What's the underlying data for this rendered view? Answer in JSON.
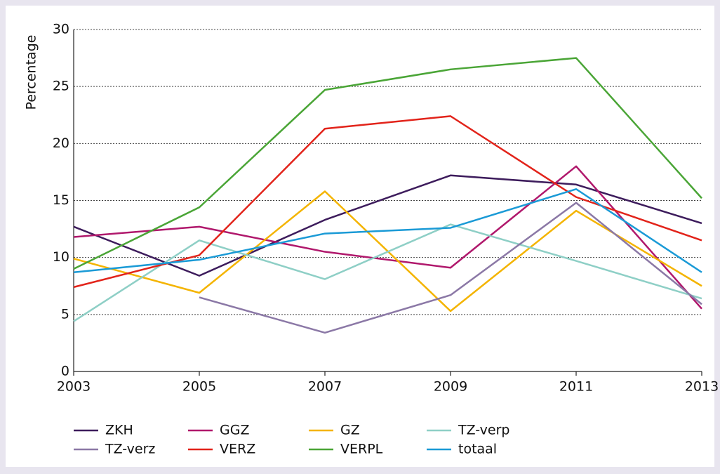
{
  "chart_data": {
    "type": "line",
    "y_label": "Percentage",
    "x": [
      2003,
      2005,
      2007,
      2009,
      2011,
      2013
    ],
    "xlim": [
      2003,
      2013
    ],
    "xticks": [
      2003,
      2005,
      2007,
      2009,
      2011,
      2013
    ],
    "ylim": [
      0,
      30
    ],
    "yticks": [
      0,
      5,
      10,
      15,
      20,
      25,
      30
    ],
    "grid": true,
    "legend": "bottom",
    "series": [
      {
        "name": "ZKH",
        "color": "#3d1c5c",
        "values": [
          12.7,
          8.4,
          13.3,
          17.2,
          16.4,
          13.0
        ]
      },
      {
        "name": "GGZ",
        "color": "#b0186c",
        "values": [
          11.8,
          12.7,
          10.5,
          9.1,
          18.0,
          5.5
        ]
      },
      {
        "name": "GZ",
        "color": "#f4b400",
        "values": [
          9.9,
          6.9,
          15.8,
          5.3,
          14.1,
          7.5
        ]
      },
      {
        "name": "TZ-verp",
        "color": "#8ecfc6",
        "values": [
          4.4,
          11.5,
          8.1,
          12.9,
          9.7,
          6.4
        ]
      },
      {
        "name": "TZ-verz",
        "color": "#8b78a6",
        "values": [
          null,
          6.5,
          3.4,
          6.7,
          14.8,
          5.9
        ]
      },
      {
        "name": "VERZ",
        "color": "#e2231a",
        "values": [
          7.4,
          10.2,
          21.3,
          22.4,
          15.3,
          11.5
        ]
      },
      {
        "name": "VERPL",
        "color": "#4aa536",
        "values": [
          9.0,
          14.4,
          24.7,
          26.5,
          27.5,
          15.2
        ]
      },
      {
        "name": "totaal",
        "color": "#1a9ad6",
        "values": [
          8.7,
          9.8,
          12.1,
          12.6,
          16.0,
          8.7
        ]
      }
    ]
  }
}
